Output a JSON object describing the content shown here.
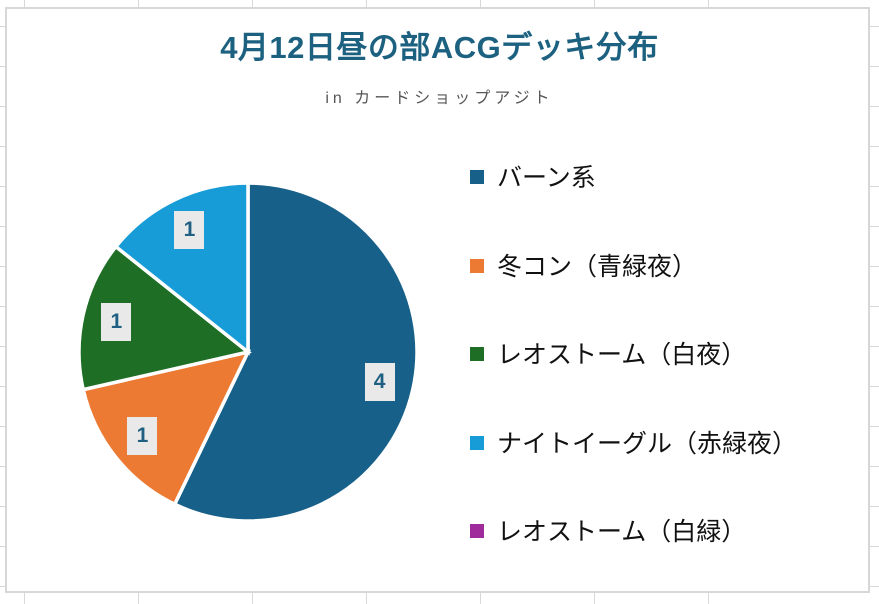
{
  "chart_data": {
    "type": "pie",
    "title": "4月12日昼の部ACGデッキ分布",
    "subtitle": "in カードショップアジト",
    "categories": [
      "バーン系",
      "冬コン（青緑夜）",
      "レオストーム（白夜）",
      "ナイトイーグル（赤緑夜）",
      "レオストーム（白緑）"
    ],
    "values": [
      4,
      1,
      1,
      1,
      0
    ],
    "total": 7,
    "colors": [
      "#17608a",
      "#ec7a33",
      "#1e6e26",
      "#189cd8",
      "#a02b9b"
    ],
    "start_angle_deg": 0,
    "direction": "clockwise",
    "legend_position": "right",
    "slice_separator_color": "#ffffff",
    "data_labels_visible_for_values_above": 0
  },
  "style": {
    "title_color": "#1d6180",
    "subtitle_color": "#565656",
    "chart_border_color": "#d7d7d7",
    "gridline_color": "#d9d9d9",
    "legend_text_color": "#111111",
    "data_label_bg": "#e9e9e9",
    "data_label_text": "#1f6082",
    "background": "#ffffff"
  }
}
